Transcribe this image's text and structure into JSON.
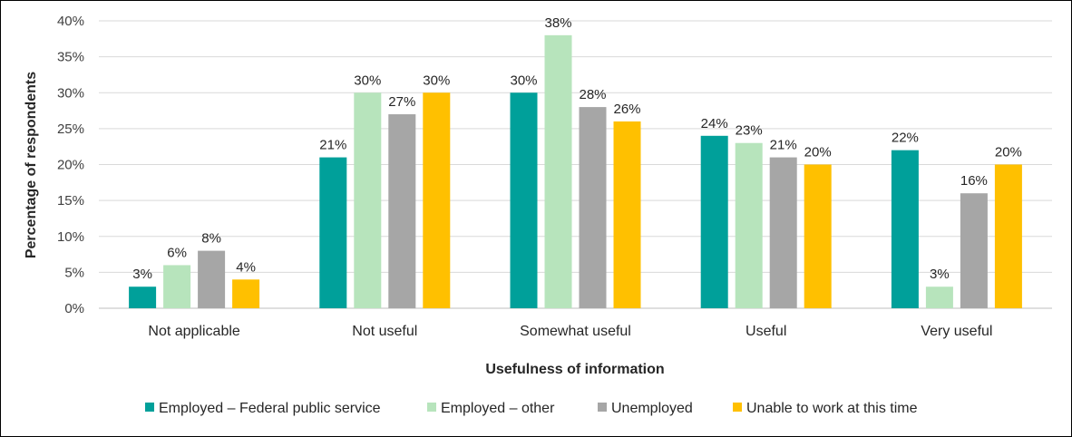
{
  "chart_data": {
    "type": "bar",
    "title": "",
    "xlabel": "Usefulness of information",
    "ylabel": "Percentage of respondents",
    "ylim": [
      0,
      40
    ],
    "yticks": [
      0,
      5,
      10,
      15,
      20,
      25,
      30,
      35,
      40
    ],
    "ytick_labels": [
      "0%",
      "5%",
      "10%",
      "15%",
      "20%",
      "25%",
      "30%",
      "35%",
      "40%"
    ],
    "grid": true,
    "legend_position": "bottom",
    "categories": [
      "Not applicable",
      "Not useful",
      "Somewhat useful",
      "Useful",
      "Very useful"
    ],
    "series": [
      {
        "name": "Employed – Federal public service",
        "color": "#00A09A",
        "values": [
          3,
          21,
          30,
          24,
          22
        ],
        "labels": [
          "3%",
          "21%",
          "30%",
          "24%",
          "22%"
        ]
      },
      {
        "name": "Employed – other",
        "color": "#B7E4BC",
        "values": [
          6,
          30,
          38,
          23,
          3
        ],
        "labels": [
          "6%",
          "30%",
          "38%",
          "23%",
          "3%"
        ]
      },
      {
        "name": "Unemployed",
        "color": "#A6A6A6",
        "values": [
          8,
          27,
          28,
          21,
          16
        ],
        "labels": [
          "8%",
          "27%",
          "28%",
          "21%",
          "16%"
        ]
      },
      {
        "name": "Unable to work at this time",
        "color": "#FFC000",
        "values": [
          4,
          30,
          26,
          20,
          20
        ],
        "labels": [
          "4%",
          "30%",
          "26%",
          "20%",
          "20%"
        ]
      }
    ]
  }
}
